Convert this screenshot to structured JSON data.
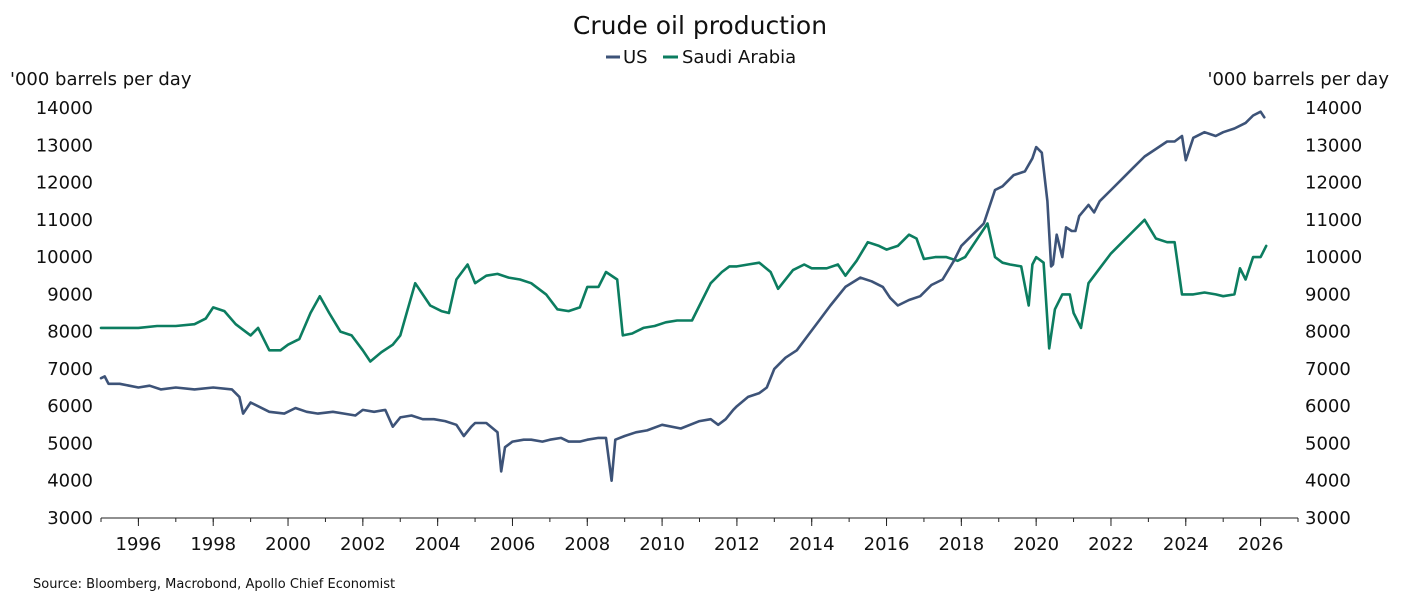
{
  "colors": {
    "us": "#3d5378",
    "saudi": "#0c7d60"
  },
  "chart_data": {
    "type": "line",
    "title": "Crude oil production",
    "y_unit_left": "'000 barrels per day",
    "y_unit_right": "'000 barrels per day",
    "ylim": [
      3000,
      14000
    ],
    "yticks": [
      "14000",
      "13000",
      "12000",
      "11000",
      "10000",
      "9000",
      "8000",
      "7000",
      "6000",
      "5000",
      "4000",
      "3000"
    ],
    "xlim": [
      1995.0,
      2027.0
    ],
    "xticks": [
      "1996",
      "1998",
      "2000",
      "2002",
      "2004",
      "2006",
      "2008",
      "2010",
      "2012",
      "2014",
      "2016",
      "2018",
      "2020",
      "2022",
      "2024",
      "2026"
    ],
    "legend_position": "top-center",
    "source": "Source: Bloomberg, Macrobond, Apollo Chief Economist",
    "series": [
      {
        "name": "US",
        "color_key": "us",
        "x": [
          1995.0,
          1995.1,
          1995.2,
          1995.5,
          1996.0,
          1996.3,
          1996.6,
          1997.0,
          1997.5,
          1998.0,
          1998.5,
          1998.7,
          1998.8,
          1999.0,
          1999.5,
          1999.9,
          2000.2,
          2000.5,
          2000.8,
          2001.2,
          2001.5,
          2001.8,
          2002.0,
          2002.3,
          2002.6,
          2002.8,
          2003.0,
          2003.3,
          2003.6,
          2003.9,
          2004.2,
          2004.5,
          2004.7,
          2004.9,
          2005.0,
          2005.3,
          2005.6,
          2005.7,
          2005.8,
          2006.0,
          2006.3,
          2006.5,
          2006.8,
          2007.0,
          2007.3,
          2007.5,
          2007.8,
          2008.0,
          2008.3,
          2008.5,
          2008.65,
          2008.75,
          2009.0,
          2009.3,
          2009.6,
          2010.0,
          2010.5,
          2011.0,
          2011.3,
          2011.5,
          2011.7,
          2011.9,
          2012.0,
          2012.3,
          2012.6,
          2012.8,
          2013.0,
          2013.3,
          2013.6,
          2013.9,
          2014.2,
          2014.5,
          2014.9,
          2015.3,
          2015.6,
          2015.9,
          2016.1,
          2016.3,
          2016.6,
          2016.9,
          2017.2,
          2017.5,
          2017.8,
          2018.0,
          2018.3,
          2018.6,
          2018.9,
          2019.1,
          2019.4,
          2019.7,
          2019.9,
          2020.0,
          2020.15,
          2020.3,
          2020.4,
          2020.45,
          2020.55,
          2020.7,
          2020.8,
          2020.95,
          2021.05,
          2021.15,
          2021.4,
          2021.55,
          2021.7,
          2022.0,
          2022.3,
          2022.6,
          2022.9,
          2023.2,
          2023.5,
          2023.7,
          2023.9,
          2024.0,
          2024.2,
          2024.5,
          2024.8,
          2025.0,
          2025.3,
          2025.6,
          2025.8,
          2026.0,
          2026.1
        ],
        "values": [
          6750,
          6800,
          6600,
          6600,
          6500,
          6550,
          6450,
          6500,
          6450,
          6500,
          6450,
          6250,
          5800,
          6100,
          5850,
          5800,
          5950,
          5850,
          5800,
          5850,
          5800,
          5750,
          5900,
          5850,
          5900,
          5450,
          5700,
          5750,
          5650,
          5650,
          5600,
          5500,
          5200,
          5450,
          5550,
          5550,
          5300,
          4250,
          4900,
          5050,
          5100,
          5100,
          5050,
          5100,
          5150,
          5050,
          5050,
          5100,
          5150,
          5150,
          4000,
          5100,
          5200,
          5300,
          5350,
          5500,
          5400,
          5600,
          5650,
          5500,
          5650,
          5900,
          6000,
          6250,
          6350,
          6500,
          7000,
          7300,
          7500,
          7900,
          8300,
          8700,
          9200,
          9450,
          9350,
          9200,
          8900,
          8700,
          8850,
          8950,
          9250,
          9400,
          9900,
          10300,
          10600,
          10900,
          11800,
          11900,
          12200,
          12300,
          12650,
          12950,
          12800,
          11500,
          9750,
          9800,
          10600,
          10000,
          10800,
          10700,
          10700,
          11100,
          11400,
          11200,
          11500,
          11800,
          12100,
          12400,
          12700,
          12900,
          13100,
          13100,
          13250,
          12600,
          13200,
          13350,
          13250,
          13350,
          13450,
          13600,
          13800,
          13900,
          13750
        ]
      },
      {
        "name": "Saudi Arabia",
        "color_key": "saudi",
        "x": [
          1995.0,
          1995.5,
          1996.0,
          1996.5,
          1997.0,
          1997.5,
          1997.8,
          1998.0,
          1998.3,
          1998.6,
          1998.8,
          1999.0,
          1999.2,
          1999.5,
          1999.8,
          2000.0,
          2000.3,
          2000.6,
          2000.85,
          2001.1,
          2001.4,
          2001.7,
          2002.0,
          2002.2,
          2002.5,
          2002.8,
          2003.0,
          2003.2,
          2003.4,
          2003.8,
          2004.1,
          2004.3,
          2004.5,
          2004.8,
          2005.0,
          2005.3,
          2005.6,
          2005.9,
          2006.2,
          2006.5,
          2006.9,
          2007.2,
          2007.5,
          2007.8,
          2008.0,
          2008.3,
          2008.5,
          2008.8,
          2008.95,
          2009.2,
          2009.5,
          2009.8,
          2010.1,
          2010.4,
          2010.8,
          2011.0,
          2011.3,
          2011.6,
          2011.8,
          2012.0,
          2012.3,
          2012.6,
          2012.9,
          2013.1,
          2013.5,
          2013.8,
          2014.0,
          2014.4,
          2014.7,
          2014.9,
          2015.2,
          2015.5,
          2015.8,
          2016.0,
          2016.3,
          2016.6,
          2016.8,
          2017.0,
          2017.3,
          2017.6,
          2017.9,
          2018.1,
          2018.4,
          2018.7,
          2018.9,
          2019.1,
          2019.3,
          2019.6,
          2019.8,
          2019.9,
          2020.0,
          2020.2,
          2020.35,
          2020.5,
          2020.7,
          2020.9,
          2021.0,
          2021.2,
          2021.4,
          2021.7,
          2022.0,
          2022.3,
          2022.6,
          2022.9,
          2023.2,
          2023.5,
          2023.7,
          2023.9,
          2024.2,
          2024.5,
          2024.8,
          2025.0,
          2025.3,
          2025.45,
          2025.6,
          2025.8,
          2026.0,
          2026.15
        ],
        "values": [
          8100,
          8100,
          8100,
          8150,
          8150,
          8200,
          8350,
          8650,
          8550,
          8200,
          8050,
          7900,
          8100,
          7500,
          7500,
          7650,
          7800,
          8500,
          8950,
          8500,
          8000,
          7900,
          7500,
          7200,
          7450,
          7650,
          7900,
          8600,
          9300,
          8700,
          8550,
          8500,
          9400,
          9800,
          9300,
          9500,
          9550,
          9450,
          9400,
          9300,
          9000,
          8600,
          8550,
          8650,
          9200,
          9200,
          9600,
          9400,
          7900,
          7950,
          8100,
          8150,
          8250,
          8300,
          8300,
          8700,
          9300,
          9600,
          9750,
          9750,
          9800,
          9850,
          9600,
          9150,
          9650,
          9800,
          9700,
          9700,
          9800,
          9500,
          9900,
          10400,
          10300,
          10200,
          10300,
          10600,
          10500,
          9950,
          10000,
          10000,
          9900,
          10000,
          10450,
          10900,
          10000,
          9850,
          9800,
          9750,
          8700,
          9800,
          10000,
          9850,
          7550,
          8600,
          9000,
          9000,
          8500,
          8100,
          9300,
          9700,
          10100,
          10400,
          10700,
          11000,
          10500,
          10400,
          10400,
          9000,
          9000,
          9050,
          9000,
          8950,
          9000,
          9700,
          9400,
          10000,
          10000,
          10300
        ]
      }
    ]
  }
}
